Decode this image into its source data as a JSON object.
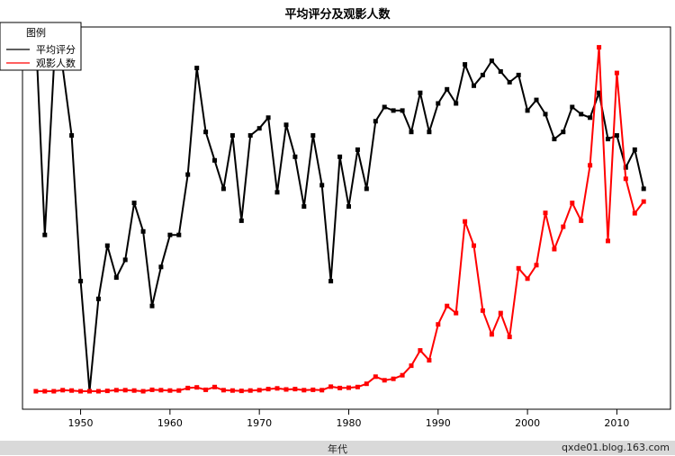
{
  "chart_data": {
    "type": "line",
    "title": "平均评分及观影人数",
    "xlabel": "年代",
    "ylabel": "",
    "legend": {
      "title": "图例",
      "placement": "top-left",
      "entries": [
        {
          "name": "平均评分",
          "color": "#000000"
        },
        {
          "name": "观影人数",
          "color": "#ff0000"
        }
      ]
    },
    "xlim": [
      1943.5,
      2016
    ],
    "ylim": [
      0,
      100
    ],
    "grid": false,
    "x_ticks": [
      1950,
      1960,
      1970,
      1980,
      1990,
      2000,
      2010
    ],
    "y_ticks_shown": false,
    "series": [
      {
        "name": "平均评分",
        "color": "#000000",
        "x": [
          1945,
          1946,
          1947,
          1948,
          1949,
          1950,
          1951,
          1952,
          1953,
          1954,
          1955,
          1956,
          1957,
          1958,
          1959,
          1960,
          1961,
          1962,
          1963,
          1964,
          1965,
          1966,
          1967,
          1968,
          1969,
          1970,
          1971,
          1972,
          1973,
          1974,
          1975,
          1976,
          1977,
          1978,
          1979,
          1980,
          1981,
          1982,
          1983,
          1984,
          1985,
          1986,
          1987,
          1988,
          1989,
          1990,
          1991,
          1992,
          1993,
          1994,
          1995,
          1996,
          1997,
          1998,
          1999,
          2000,
          2001,
          2002,
          2003,
          2004,
          2005,
          2006,
          2007,
          2008,
          2009,
          2010,
          2011,
          2012,
          2013
        ],
        "values": [
          100,
          44,
          91,
          91,
          72,
          31,
          0,
          26,
          41,
          32,
          37,
          53,
          45,
          24,
          35,
          44,
          44,
          61,
          91,
          73,
          65,
          57,
          72,
          48,
          72,
          74,
          77,
          56,
          75,
          66,
          52,
          72,
          58,
          31,
          66,
          52,
          68,
          57,
          76,
          80,
          79,
          79,
          73,
          84,
          73,
          81,
          85,
          81,
          92,
          86,
          89,
          93,
          90,
          87,
          89,
          79,
          82,
          78,
          71,
          73,
          80,
          78,
          77,
          84,
          71,
          72,
          63,
          68,
          57
        ]
      },
      {
        "name": "观影人数",
        "color": "#ff0000",
        "x": [
          1945,
          1946,
          1947,
          1948,
          1949,
          1950,
          1951,
          1952,
          1953,
          1954,
          1955,
          1956,
          1957,
          1958,
          1959,
          1960,
          1961,
          1962,
          1963,
          1964,
          1965,
          1966,
          1967,
          1968,
          1969,
          1970,
          1971,
          1972,
          1973,
          1974,
          1975,
          1976,
          1977,
          1978,
          1979,
          1980,
          1981,
          1982,
          1983,
          1984,
          1985,
          1986,
          1987,
          1988,
          1989,
          1990,
          1991,
          1992,
          1993,
          1994,
          1995,
          1996,
          1997,
          1998,
          1999,
          2000,
          2001,
          2002,
          2003,
          2004,
          2005,
          2006,
          2007,
          2008,
          2009,
          2010,
          2011,
          2012,
          2013
        ],
        "values": [
          0,
          0,
          0,
          0.3,
          0.2,
          0,
          0,
          0,
          0.1,
          0.3,
          0.3,
          0.2,
          0,
          0.4,
          0.3,
          0.2,
          0.2,
          0.9,
          1.1,
          0.4,
          1.2,
          0.3,
          0.2,
          0.1,
          0.2,
          0.3,
          0.6,
          0.8,
          0.5,
          0.6,
          0.3,
          0.4,
          0.3,
          1.3,
          0.9,
          1.0,
          1.2,
          2.1,
          4.1,
          3.1,
          3.5,
          4.5,
          7.2,
          11.5,
          8.7,
          18.8,
          24,
          22,
          47.8,
          41,
          22.7,
          16,
          22,
          15.3,
          34.6,
          31.7,
          35.5,
          50.2,
          40,
          46.3,
          53,
          48,
          63.6,
          96.8,
          42.3,
          89.6,
          59.8,
          50.1,
          53.4
        ]
      }
    ]
  },
  "footer": {
    "xlabel": "年代",
    "credit": "qxde01.blog.163.com"
  }
}
